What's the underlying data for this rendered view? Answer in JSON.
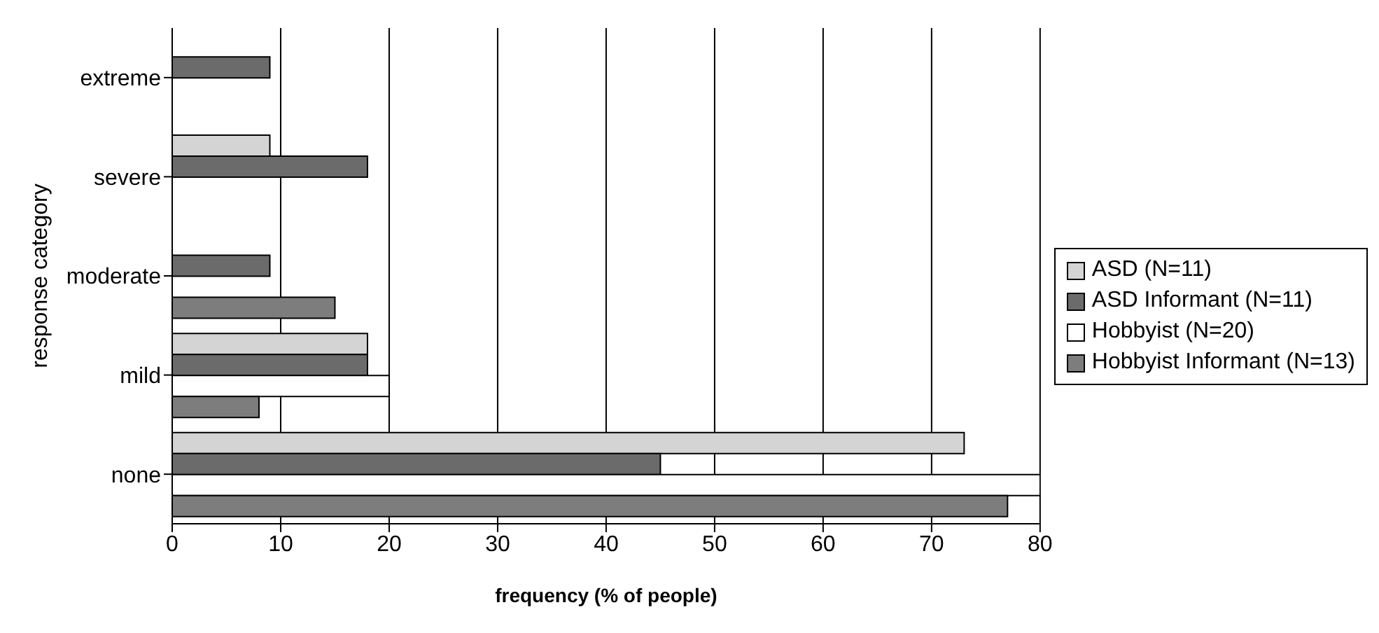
{
  "chart_data": {
    "type": "bar",
    "orientation": "horizontal",
    "xlabel": "frequency (% of people)",
    "ylabel": "response category",
    "categories": [
      "extreme",
      "severe",
      "moderate",
      "mild",
      "none"
    ],
    "series": [
      {
        "name": "ASD (N=11)",
        "color": "#d4d4d4",
        "values": [
          0,
          9,
          0,
          18,
          73
        ]
      },
      {
        "name": "ASD Informant (N=11)",
        "color": "#6b6b6b",
        "values": [
          9,
          18,
          9,
          18,
          45
        ]
      },
      {
        "name": "Hobbyist (N=20)",
        "color": "#ffffff",
        "values": [
          0,
          0,
          0,
          20,
          80
        ]
      },
      {
        "name": "Hobbyist Informant (N=13)",
        "color": "#7d7d7d",
        "values": [
          0,
          0,
          15,
          8,
          77
        ]
      }
    ],
    "xlim": [
      0,
      80
    ],
    "xticks": [
      0,
      10,
      20,
      30,
      40,
      50,
      60,
      70,
      80
    ],
    "grid": "x",
    "legend": "right"
  }
}
